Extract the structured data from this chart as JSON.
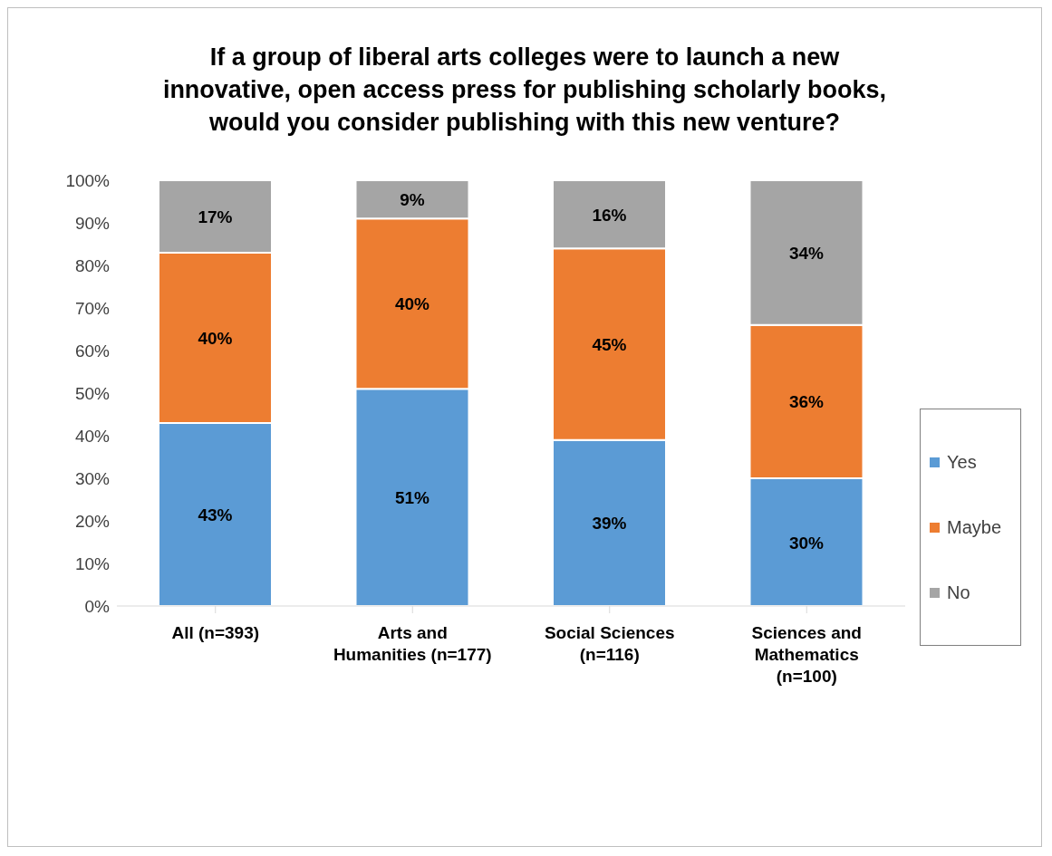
{
  "chart_data": {
    "type": "bar",
    "title": "If a group of liberal arts colleges were to launch a new innovative, open access press for publishing scholarly books, would you consider publishing with this new venture?",
    "categories": [
      "All (n=393)",
      "Arts and Humanities (n=177)",
      "Social Sciences (n=116)",
      "Sciences and Mathematics (n=100)"
    ],
    "stacked": true,
    "series": [
      {
        "name": "Yes",
        "color": "#5b9bd5",
        "values": [
          43,
          51,
          39,
          30
        ],
        "value_labels": [
          "43%",
          "51%",
          "39%",
          "30%"
        ]
      },
      {
        "name": "Maybe",
        "color": "#ed7d31",
        "values": [
          40,
          40,
          45,
          36
        ],
        "value_labels": [
          "40%",
          "40%",
          "45%",
          "36%"
        ]
      },
      {
        "name": "No",
        "color": "#a5a5a5",
        "values": [
          17,
          9,
          16,
          34
        ],
        "value_labels": [
          "17%",
          "9%",
          "16%",
          "34%"
        ]
      }
    ],
    "ylim": [
      0,
      100
    ],
    "yticks": [
      {
        "value": 0,
        "label": "0%"
      },
      {
        "value": 10,
        "label": "10%"
      },
      {
        "value": 20,
        "label": "20%"
      },
      {
        "value": 30,
        "label": "30%"
      },
      {
        "value": 40,
        "label": "40%"
      },
      {
        "value": 50,
        "label": "50%"
      },
      {
        "value": 60,
        "label": "60%"
      },
      {
        "value": 70,
        "label": "70%"
      },
      {
        "value": 80,
        "label": "80%"
      },
      {
        "value": 90,
        "label": "90%"
      },
      {
        "value": 100,
        "label": "100%"
      }
    ],
    "grid": false,
    "legend": "right"
  }
}
